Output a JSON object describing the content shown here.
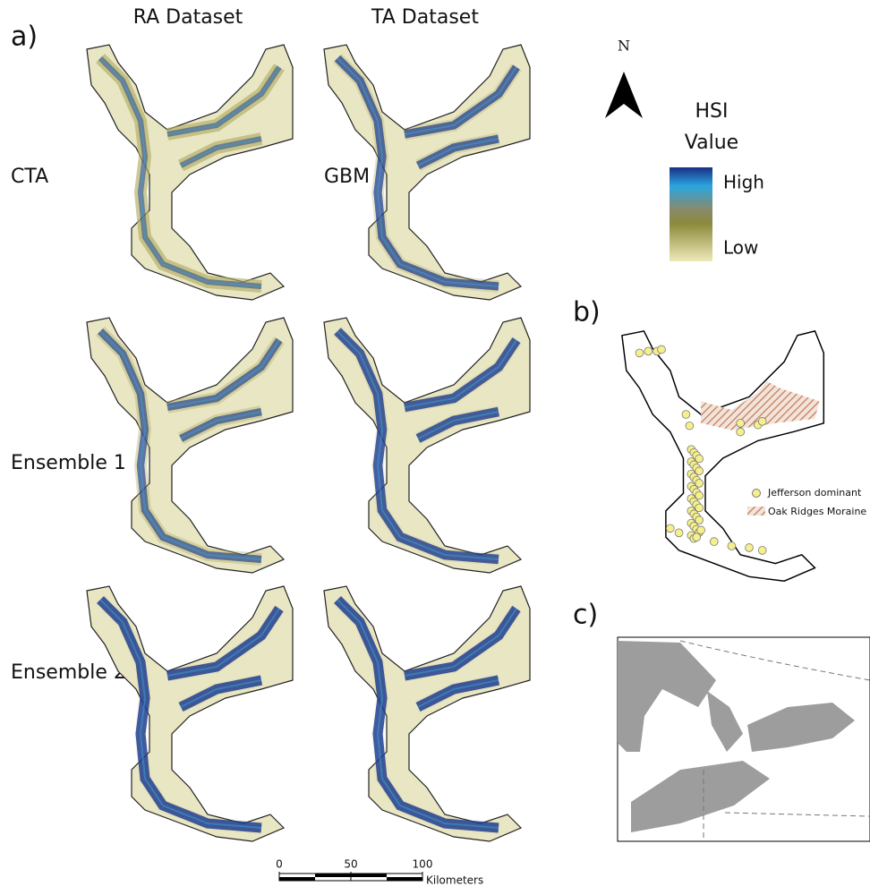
{
  "panel_a": {
    "label": "a)",
    "columns": [
      "RA Dataset",
      "TA Dataset"
    ],
    "rows": [
      [
        "CTA",
        "GBM"
      ],
      [
        "Ensemble 1"
      ],
      [
        "Ensemble 2"
      ]
    ]
  },
  "north_arrow": "N",
  "legend": {
    "title_lines": [
      "HSI",
      "Value"
    ],
    "high": "High",
    "low": "Low"
  },
  "panel_b": {
    "label": "b)",
    "legend": [
      "Jefferson dominant",
      "Oak Ridges Moraine"
    ]
  },
  "panel_c": {
    "label": "c)"
  },
  "scale_bar": {
    "ticks": [
      0,
      50,
      100
    ],
    "unit": "Kilometers"
  }
}
